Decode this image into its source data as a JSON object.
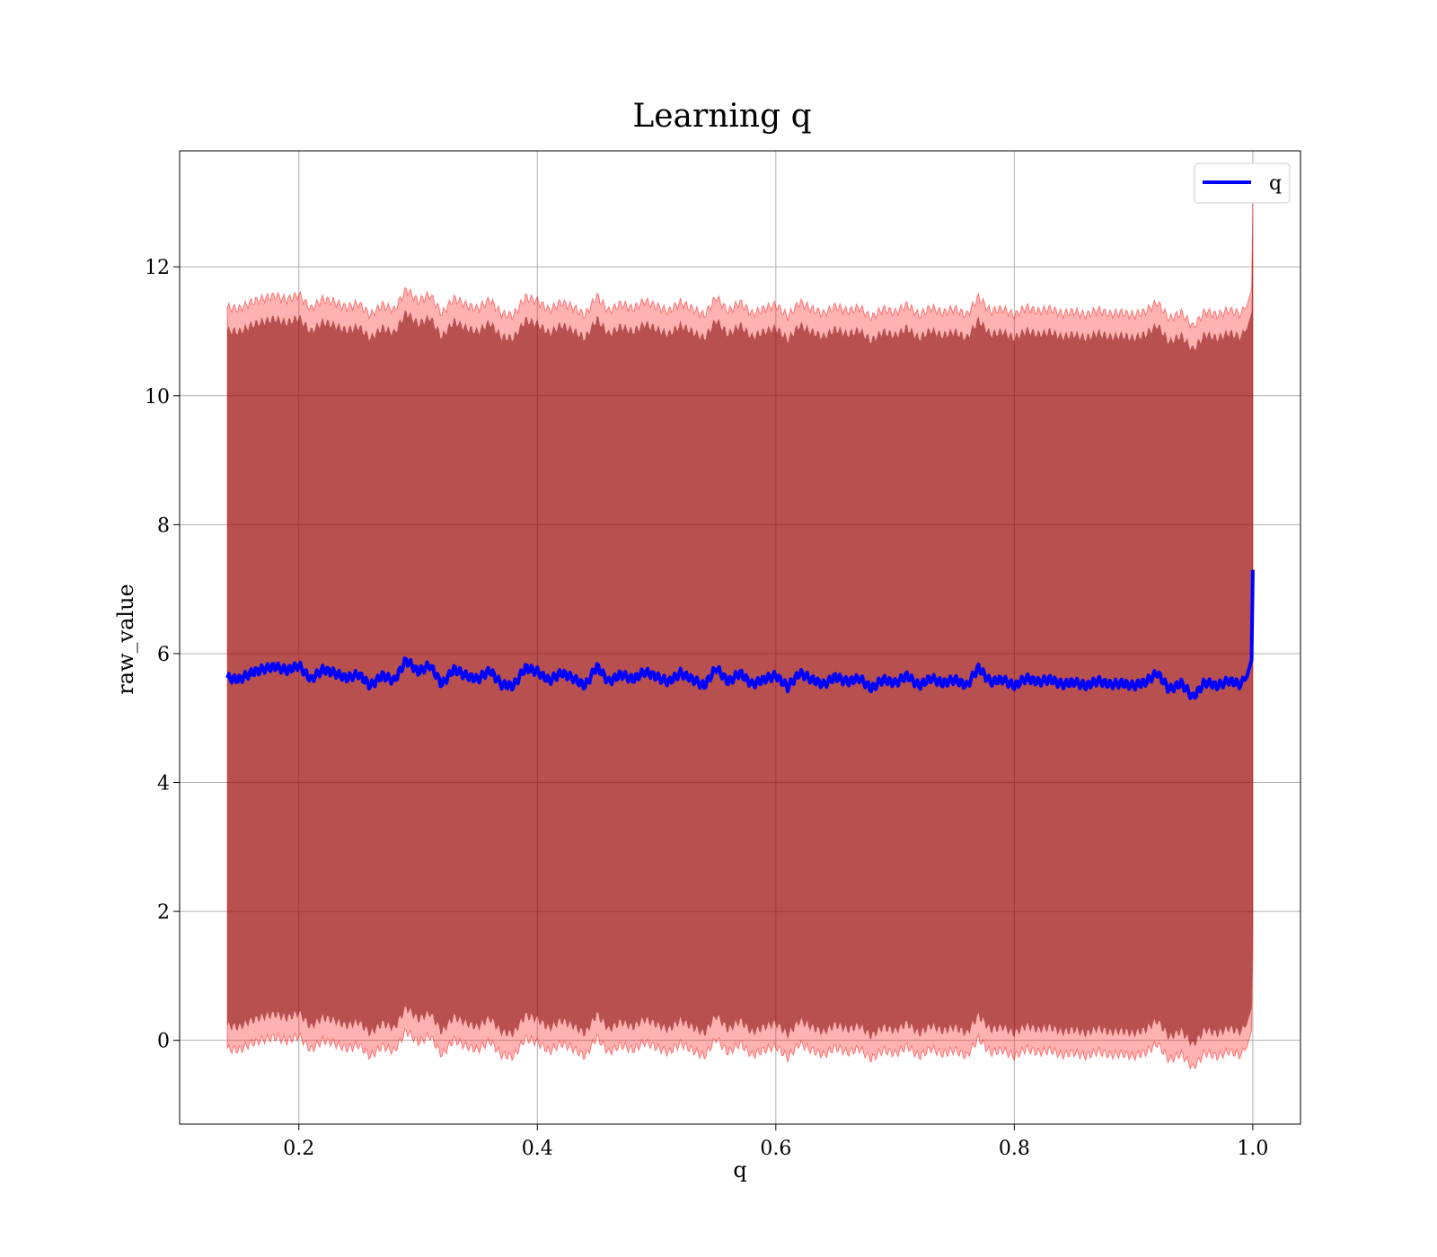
{
  "chart_data": {
    "type": "line",
    "title": "Learning q",
    "xlabel": "q",
    "ylabel": "raw_value",
    "xlim": [
      0.1,
      1.04
    ],
    "ylim": [
      -1.3,
      13.8
    ],
    "xticks": [
      0.2,
      0.4,
      0.6,
      0.8,
      1.0
    ],
    "xtick_labels": [
      "0.2",
      "0.4",
      "0.6",
      "0.8",
      "1.0"
    ],
    "yticks": [
      0,
      2,
      4,
      6,
      8,
      10,
      12
    ],
    "ytick_labels": [
      "0",
      "2",
      "4",
      "6",
      "8",
      "10",
      "12"
    ],
    "grid": true,
    "legend": {
      "position": "top-right",
      "entries": [
        {
          "label": "q",
          "color": "#0000ff"
        }
      ]
    },
    "series": [
      {
        "name": "q",
        "color": "#0000ff",
        "x": [
          0.14,
          0.15,
          0.16,
          0.17,
          0.18,
          0.19,
          0.2,
          0.21,
          0.22,
          0.23,
          0.24,
          0.25,
          0.26,
          0.27,
          0.28,
          0.29,
          0.3,
          0.31,
          0.32,
          0.33,
          0.34,
          0.35,
          0.36,
          0.37,
          0.38,
          0.39,
          0.4,
          0.41,
          0.42,
          0.43,
          0.44,
          0.45,
          0.46,
          0.47,
          0.48,
          0.49,
          0.5,
          0.51,
          0.52,
          0.53,
          0.54,
          0.55,
          0.56,
          0.57,
          0.58,
          0.59,
          0.6,
          0.61,
          0.62,
          0.63,
          0.64,
          0.65,
          0.66,
          0.67,
          0.68,
          0.69,
          0.7,
          0.71,
          0.72,
          0.73,
          0.74,
          0.75,
          0.76,
          0.77,
          0.78,
          0.79,
          0.8,
          0.81,
          0.82,
          0.83,
          0.84,
          0.85,
          0.86,
          0.87,
          0.88,
          0.89,
          0.9,
          0.91,
          0.92,
          0.93,
          0.94,
          0.95,
          0.96,
          0.97,
          0.98,
          0.99,
          0.995,
          0.999,
          1.0
        ],
        "y": [
          5.62,
          5.6,
          5.7,
          5.76,
          5.8,
          5.74,
          5.82,
          5.6,
          5.75,
          5.7,
          5.62,
          5.68,
          5.5,
          5.66,
          5.58,
          5.9,
          5.72,
          5.82,
          5.52,
          5.76,
          5.66,
          5.6,
          5.74,
          5.52,
          5.5,
          5.78,
          5.72,
          5.58,
          5.7,
          5.62,
          5.5,
          5.8,
          5.56,
          5.68,
          5.6,
          5.72,
          5.64,
          5.56,
          5.7,
          5.6,
          5.5,
          5.78,
          5.56,
          5.7,
          5.52,
          5.6,
          5.66,
          5.48,
          5.7,
          5.6,
          5.52,
          5.64,
          5.56,
          5.62,
          5.46,
          5.6,
          5.54,
          5.66,
          5.5,
          5.62,
          5.54,
          5.6,
          5.5,
          5.78,
          5.56,
          5.6,
          5.5,
          5.62,
          5.56,
          5.6,
          5.52,
          5.56,
          5.5,
          5.58,
          5.52,
          5.54,
          5.5,
          5.56,
          5.7,
          5.44,
          5.54,
          5.32,
          5.56,
          5.5,
          5.58,
          5.52,
          5.64,
          5.9,
          7.3
        ],
        "band_outer": {
          "color": "#ff0000",
          "opacity": 0.3,
          "halfwidth": 5.75
        },
        "band_inner": {
          "color": "#800000",
          "opacity": 0.55,
          "halfwidth": 5.4
        }
      }
    ]
  }
}
